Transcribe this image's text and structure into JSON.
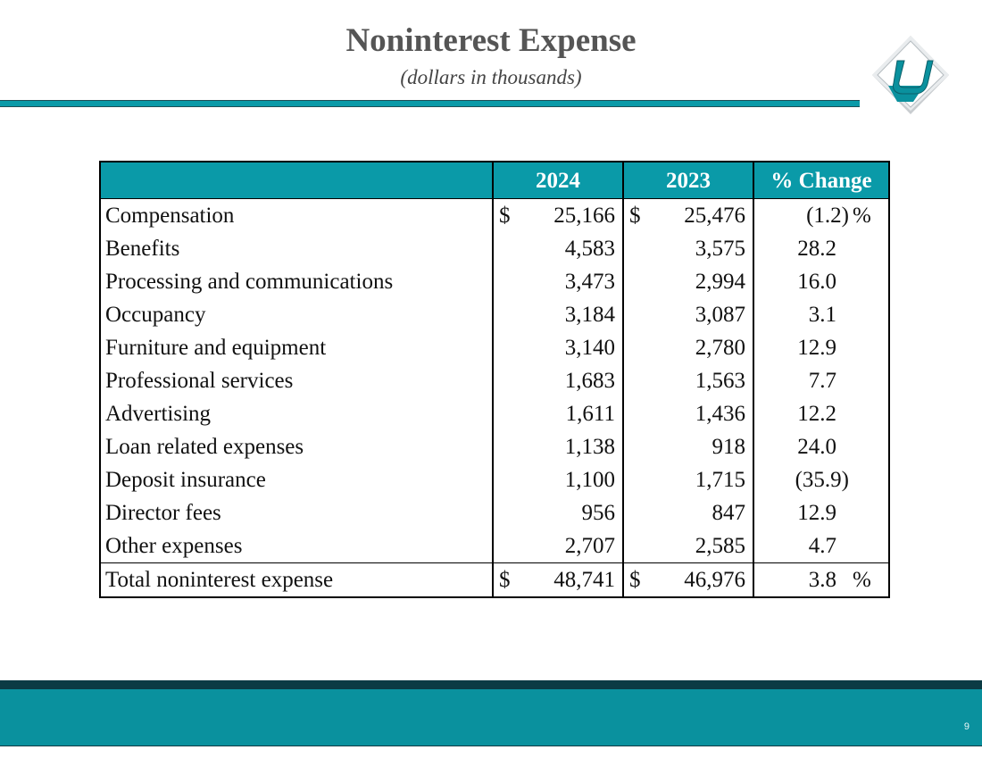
{
  "slide": {
    "title": "Noninterest Expense",
    "subtitle": "(dollars in thousands)",
    "page_number": "9",
    "logo_icon": "company-logo-icon"
  },
  "table": {
    "headers": [
      "",
      "2024",
      "2023",
      "% Change"
    ],
    "rows": [
      {
        "label": "Compensation",
        "cur": "$",
        "v2024": "25,166",
        "v2023": "25,476",
        "pct": "(1.2)",
        "pct_sign": "%"
      },
      {
        "label": "Benefits",
        "cur": "",
        "v2024": "4,583",
        "v2023": "3,575",
        "pct": "28.2",
        "pct_sign": ""
      },
      {
        "label": "Processing and communications",
        "cur": "",
        "v2024": "3,473",
        "v2023": "2,994",
        "pct": "16.0",
        "pct_sign": ""
      },
      {
        "label": "Occupancy",
        "cur": "",
        "v2024": "3,184",
        "v2023": "3,087",
        "pct": "3.1",
        "pct_sign": ""
      },
      {
        "label": "Furniture and equipment",
        "cur": "",
        "v2024": "3,140",
        "v2023": "2,780",
        "pct": "12.9",
        "pct_sign": ""
      },
      {
        "label": "Professional services",
        "cur": "",
        "v2024": "1,683",
        "v2023": "1,563",
        "pct": "7.7",
        "pct_sign": ""
      },
      {
        "label": "Advertising",
        "cur": "",
        "v2024": "1,611",
        "v2023": "1,436",
        "pct": "12.2",
        "pct_sign": ""
      },
      {
        "label": "Loan related expenses",
        "cur": "",
        "v2024": "1,138",
        "v2023": "918",
        "pct": "24.0",
        "pct_sign": ""
      },
      {
        "label": "Deposit insurance",
        "cur": "",
        "v2024": "1,100",
        "v2023": "1,715",
        "pct": "(35.9)",
        "pct_sign": ""
      },
      {
        "label": "Director fees",
        "cur": "",
        "v2024": "956",
        "v2023": "847",
        "pct": "12.9",
        "pct_sign": ""
      },
      {
        "label": "Other expenses",
        "cur": "",
        "v2024": "2,707",
        "v2023": "2,585",
        "pct": "4.7",
        "pct_sign": ""
      }
    ],
    "total": {
      "label": "Total noninterest expense",
      "cur": "$",
      "v2024": "48,741",
      "v2023": "46,976",
      "pct": "3.8",
      "pct_sign": "%"
    }
  },
  "colors": {
    "accent": "#0a9aa8",
    "footer_dark": "#0b3b44",
    "title_gray": "#555555"
  }
}
